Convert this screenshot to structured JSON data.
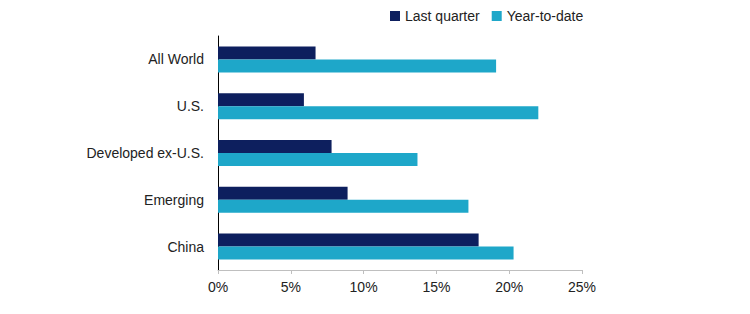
{
  "chart_data": {
    "type": "bar",
    "orientation": "horizontal",
    "categories": [
      "All World",
      "U.S.",
      "Developed ex-U.S.",
      "Emerging",
      "China"
    ],
    "series": [
      {
        "name": "Last quarter",
        "color": "#0d1f5e",
        "values": [
          6.7,
          5.9,
          7.8,
          8.9,
          17.9
        ]
      },
      {
        "name": "Year-to-date",
        "color": "#1ea7c9",
        "values": [
          19.1,
          22.0,
          13.7,
          17.2,
          20.3
        ]
      }
    ],
    "xlim": [
      0,
      25
    ],
    "xticks": [
      {
        "value": 0,
        "label": "0%"
      },
      {
        "value": 5,
        "label": "5%"
      },
      {
        "value": 10,
        "label": "10%"
      },
      {
        "value": 15,
        "label": "15%"
      },
      {
        "value": 20,
        "label": "20%"
      },
      {
        "value": 25,
        "label": "25%"
      }
    ],
    "grid": false,
    "legend": "top"
  }
}
